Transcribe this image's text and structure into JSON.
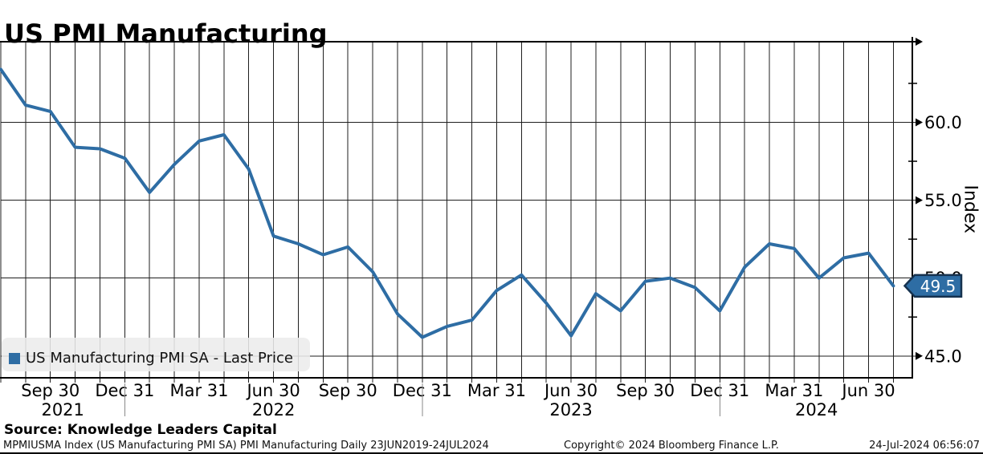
{
  "title": "US PMI Manufacturing",
  "legend": {
    "series_label": "US Manufacturing PMI SA - Last Price",
    "swatch_color": "#2e6da4"
  },
  "source_line": "Source: Knowledge Leaders Capital",
  "footer": {
    "security_info": "MPMIUSMA Index (US Manufacturing PMI SA) PMI Manufacturing  Daily 23JUN2019-24JUL2024",
    "copyright": "Copyright© 2024 Bloomberg Finance L.P.",
    "timestamp": "24-Jul-2024 06:56:07"
  },
  "chart_data": {
    "type": "line",
    "title": "US PMI Manufacturing",
    "xlabel": "",
    "ylabel": "Index",
    "grid": true,
    "legend_position": "bottom-left",
    "ylim": [
      43.6,
      65.2
    ],
    "x_start_month": "2021-07",
    "x_end_month": "2024-07",
    "x_frequency": "monthly",
    "series": [
      {
        "name": "US Manufacturing PMI SA - Last Price",
        "color": "#2e6da4",
        "values": [
          63.4,
          61.1,
          60.7,
          58.4,
          58.3,
          57.7,
          55.5,
          57.3,
          58.8,
          59.2,
          57.0,
          52.7,
          52.2,
          51.5,
          52.0,
          50.4,
          47.7,
          46.2,
          46.9,
          47.3,
          49.2,
          50.2,
          48.4,
          46.3,
          49.0,
          47.9,
          49.8,
          50.0,
          49.4,
          47.9,
          50.7,
          52.2,
          51.9,
          50.0,
          51.3,
          51.6,
          49.5
        ]
      }
    ],
    "x_ticks": [
      {
        "label": "Sep 30",
        "month_index": 2
      },
      {
        "label": "Dec 31",
        "month_index": 5
      },
      {
        "label": "Mar 31",
        "month_index": 8
      },
      {
        "label": "Jun 30",
        "month_index": 11
      },
      {
        "label": "Sep 30",
        "month_index": 14
      },
      {
        "label": "Dec 31",
        "month_index": 17
      },
      {
        "label": "Mar 31",
        "month_index": 20
      },
      {
        "label": "Jun 30",
        "month_index": 23
      },
      {
        "label": "Sep 30",
        "month_index": 26
      },
      {
        "label": "Dec 31",
        "month_index": 29
      },
      {
        "label": "Mar 31",
        "month_index": 32
      },
      {
        "label": "Jun 30",
        "month_index": 35
      }
    ],
    "x_years": [
      {
        "label": "2021",
        "center_month": 2.5
      },
      {
        "label": "2022",
        "center_month": 11.0
      },
      {
        "label": "2023",
        "center_month": 23.0
      },
      {
        "label": "2024",
        "center_month": 32.9
      }
    ],
    "year_separator_months": [
      5,
      17,
      29
    ],
    "y_major_ticks": [
      {
        "value": 60.0,
        "label": "60.0"
      },
      {
        "value": 55.0,
        "label": "55.0"
      },
      {
        "value": 50.0,
        "label": "50.0"
      },
      {
        "value": 45.0,
        "label": "45.0"
      }
    ],
    "y_minor_ticks": [
      62.5,
      57.5,
      52.5,
      47.5
    ],
    "last_price": 49.5,
    "last_price_label": "49.5",
    "colors": {
      "line": "#2e6da4",
      "flag_fill": "#2e6da4",
      "flag_border": "#16324f",
      "flag_text": "#ffffff",
      "grid": "#1f1f1f",
      "axis": "#000000",
      "year_separator": "#8a8a8a"
    }
  }
}
